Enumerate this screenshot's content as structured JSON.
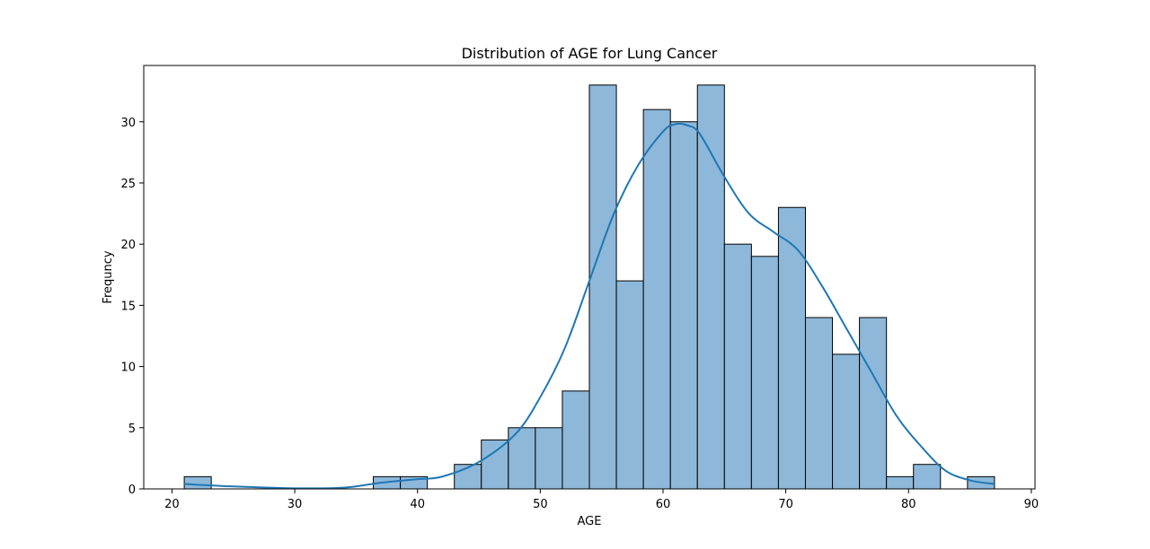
{
  "chart_data": {
    "type": "bar",
    "subtype": "histogram-with-kde",
    "title": "Distribution of AGE for Lung Cancer",
    "xlabel": "AGE",
    "ylabel": "Frequncy",
    "xlim": [
      17.7,
      90.3
    ],
    "ylim": [
      0,
      34.6
    ],
    "xticks": [
      20,
      30,
      40,
      50,
      60,
      70,
      80,
      90
    ],
    "yticks": [
      0,
      5,
      10,
      15,
      20,
      25,
      30
    ],
    "grid": false,
    "legend": "none",
    "bins": {
      "edges": [
        21.0,
        23.2,
        25.4,
        27.6,
        29.8,
        32.0,
        34.2,
        36.4,
        38.6,
        40.8,
        43.0,
        45.2,
        47.4,
        49.6,
        51.8,
        54.0,
        56.2,
        58.4,
        60.6,
        62.8,
        65.0,
        67.2,
        69.4,
        71.6,
        73.8,
        76.0,
        78.2,
        80.4,
        82.6,
        84.8,
        87.0
      ],
      "counts": [
        1,
        0,
        0,
        0,
        0,
        0,
        0,
        1,
        1,
        0,
        2,
        4,
        5,
        5,
        8,
        33,
        17,
        31,
        30,
        33,
        20,
        19,
        23,
        14,
        11,
        14,
        1,
        2,
        0,
        1
      ]
    },
    "kde": {
      "x": [
        21,
        25,
        30,
        34,
        37,
        40,
        42,
        45,
        48,
        50,
        52,
        54,
        56,
        58,
        60,
        61,
        62,
        63,
        65,
        67,
        69,
        71,
        73,
        75,
        77,
        79,
        81,
        83,
        85,
        87
      ],
      "y": [
        0.4,
        0.2,
        0.05,
        0.1,
        0.5,
        0.8,
        1.0,
        2.2,
        4.5,
        7.5,
        11.5,
        17.0,
        22.5,
        26.5,
        29.2,
        29.8,
        29.7,
        29.0,
        25.5,
        22.5,
        21.0,
        19.5,
        16.5,
        13.0,
        9.5,
        6.0,
        3.5,
        1.5,
        0.7,
        0.4
      ]
    },
    "colors": {
      "bar_fill": "#8db8da",
      "bar_edge": "#000000",
      "kde_line": "#1f77b4"
    }
  }
}
